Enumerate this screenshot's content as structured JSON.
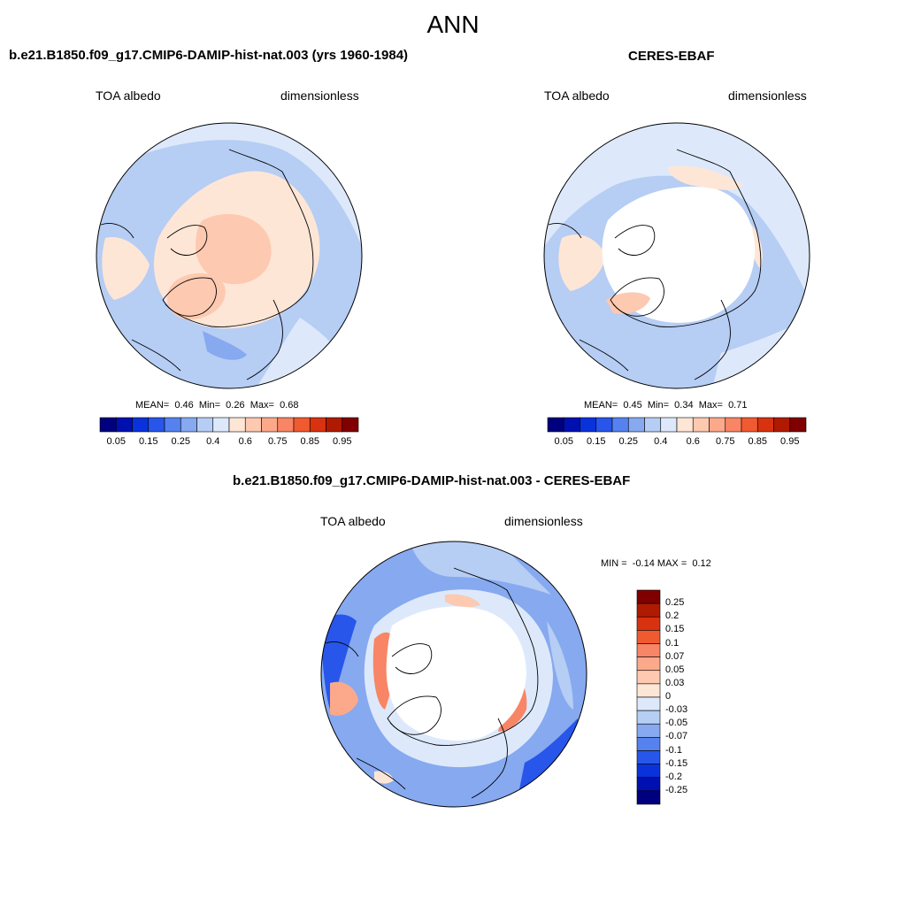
{
  "title": "ANN",
  "panels": {
    "model": {
      "title": "b.e21.B1850.f09_g17.CMIP6-DAMIP-hist-nat.003 (yrs 1960-1984)",
      "left_label": "TOA albedo",
      "right_label": "dimensionless",
      "stats": {
        "mean_label": "MEAN=",
        "mean": "0.46",
        "min_label": "Min=",
        "min": "0.26",
        "max_label": "Max=",
        "max": "0.68"
      }
    },
    "obs": {
      "title": "CERES-EBAF",
      "left_label": "TOA albedo",
      "right_label": "dimensionless",
      "stats": {
        "mean_label": "MEAN=",
        "mean": "0.45",
        "min_label": "Min=",
        "min": "0.34",
        "max_label": "Max=",
        "max": "0.71"
      }
    },
    "diff": {
      "title": "b.e21.B1850.f09_g17.CMIP6-DAMIP-hist-nat.003 - CERES-EBAF",
      "left_label": "TOA albedo",
      "right_label": "dimensionless",
      "stats": {
        "min_label": "MIN =",
        "min": "-0.14",
        "max_label": "MAX =",
        "max": "0.12"
      }
    }
  },
  "colorbars": {
    "abs": {
      "colors": [
        "#00007f",
        "#0010b0",
        "#0a32dc",
        "#2856ea",
        "#5582ee",
        "#86a9f0",
        "#b6cdf4",
        "#dde9fb",
        "#fee6d6",
        "#fdc9b0",
        "#fba98a",
        "#f88565",
        "#f05a30",
        "#d83210",
        "#b01a00",
        "#800000"
      ],
      "ticks": [
        "0.05",
        "0.15",
        "0.25",
        "0.4",
        "0.6",
        "0.75",
        "0.85",
        "0.95"
      ]
    },
    "diff": {
      "colors": [
        "#800000",
        "#b01a00",
        "#d83210",
        "#f05a30",
        "#f88565",
        "#fba98a",
        "#fdc9b0",
        "#fee6d6",
        "#dde9fb",
        "#b6cdf4",
        "#86a9f0",
        "#5582ee",
        "#2856ea",
        "#0a32dc",
        "#0010b0",
        "#00007f"
      ],
      "ticks": [
        "0.25",
        "0.2",
        "0.15",
        "0.1",
        "0.07",
        "0.05",
        "0.03",
        "0",
        "-0.03",
        "-0.05",
        "-0.07",
        "-0.1",
        "-0.15",
        "-0.2",
        "-0.25"
      ]
    }
  },
  "map_colors": {
    "ocean": "#b6cdf4",
    "ocean_light": "#dde9fb",
    "land_warm": "#fee6d6",
    "land_hot": "#fdc9b0",
    "missing": "#ffffff",
    "diff_neg": "#5582ee",
    "diff_neg_strong": "#2856ea",
    "diff_pos": "#f88565",
    "diff_pos_light": "#fdc9b0"
  }
}
